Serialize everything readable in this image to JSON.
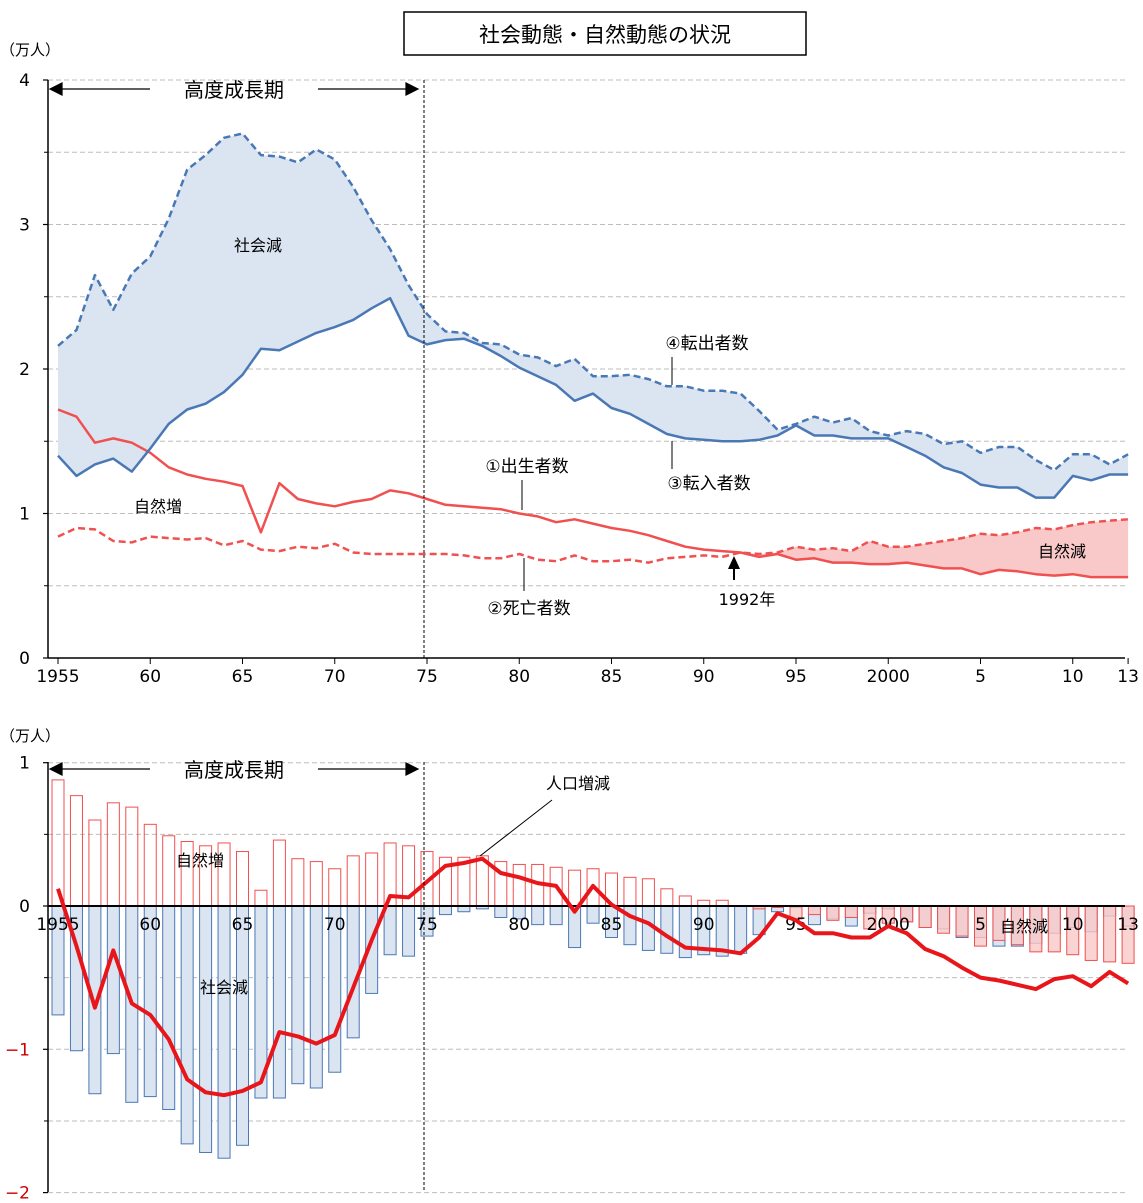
{
  "title": "社会動態・自然動態の状況",
  "unit_label": "（万人）",
  "colors": {
    "blue": "#4a78b5",
    "blue_fill": "#dbe5f2",
    "red": "#f05050",
    "red_fill": "#f9c8c8",
    "net_line": "#e8161a",
    "neg_tick": "#cc0000",
    "grid": "#bdbdbd"
  },
  "chart_data": [
    {
      "type": "line",
      "ylim": [
        0,
        4
      ],
      "yticks": [
        "0",
        "1",
        "2",
        "3",
        "4"
      ],
      "xticks": [
        {
          "year": 1955,
          "label": "1955"
        },
        {
          "year": 1960,
          "label": "60"
        },
        {
          "year": 1965,
          "label": "65"
        },
        {
          "year": 1970,
          "label": "70"
        },
        {
          "year": 1975,
          "label": "75"
        },
        {
          "year": 1980,
          "label": "80"
        },
        {
          "year": 1985,
          "label": "85"
        },
        {
          "year": 1990,
          "label": "90"
        },
        {
          "year": 1995,
          "label": "95"
        },
        {
          "year": 2000,
          "label": "2000"
        },
        {
          "year": 2005,
          "label": "5"
        },
        {
          "year": 2010,
          "label": "10"
        },
        {
          "year": 2013,
          "label": "13"
        }
      ],
      "x": [
        1955,
        1956,
        1957,
        1958,
        1959,
        1960,
        1961,
        1962,
        1963,
        1964,
        1965,
        1966,
        1967,
        1968,
        1969,
        1970,
        1971,
        1972,
        1973,
        1974,
        1975,
        1976,
        1977,
        1978,
        1979,
        1980,
        1981,
        1982,
        1983,
        1984,
        1985,
        1986,
        1987,
        1988,
        1989,
        1990,
        1991,
        1992,
        1993,
        1994,
        1995,
        1996,
        1997,
        1998,
        1999,
        2000,
        2001,
        2002,
        2003,
        2004,
        2005,
        2006,
        2007,
        2008,
        2009,
        2010,
        2011,
        2012,
        2013
      ],
      "series": [
        {
          "name": "①出生者数",
          "values": [
            1.72,
            1.67,
            1.49,
            1.52,
            1.49,
            1.42,
            1.32,
            1.27,
            1.24,
            1.22,
            1.19,
            0.87,
            1.21,
            1.1,
            1.07,
            1.05,
            1.08,
            1.1,
            1.16,
            1.14,
            1.1,
            1.06,
            1.05,
            1.04,
            1.03,
            1.0,
            0.98,
            0.94,
            0.96,
            0.93,
            0.9,
            0.88,
            0.85,
            0.81,
            0.77,
            0.75,
            0.74,
            0.73,
            0.7,
            0.72,
            0.68,
            0.69,
            0.66,
            0.66,
            0.65,
            0.65,
            0.66,
            0.64,
            0.62,
            0.62,
            0.58,
            0.61,
            0.6,
            0.58,
            0.57,
            0.58,
            0.56,
            0.56,
            0.56
          ]
        },
        {
          "name": "②死亡者数",
          "values": [
            0.84,
            0.9,
            0.89,
            0.81,
            0.8,
            0.84,
            0.83,
            0.82,
            0.83,
            0.78,
            0.81,
            0.75,
            0.74,
            0.77,
            0.76,
            0.79,
            0.73,
            0.72,
            0.72,
            0.72,
            0.72,
            0.72,
            0.71,
            0.69,
            0.69,
            0.72,
            0.68,
            0.67,
            0.71,
            0.67,
            0.67,
            0.68,
            0.66,
            0.69,
            0.7,
            0.71,
            0.7,
            0.73,
            0.72,
            0.73,
            0.77,
            0.75,
            0.76,
            0.74,
            0.81,
            0.77,
            0.77,
            0.79,
            0.81,
            0.83,
            0.86,
            0.85,
            0.87,
            0.9,
            0.89,
            0.92,
            0.94,
            0.95,
            0.96
          ]
        },
        {
          "name": "③転入者数",
          "values": [
            1.4,
            1.26,
            1.34,
            1.38,
            1.29,
            1.45,
            1.62,
            1.72,
            1.76,
            1.84,
            1.96,
            2.14,
            2.13,
            2.19,
            2.25,
            2.29,
            2.34,
            2.42,
            2.49,
            2.23,
            2.17,
            2.2,
            2.21,
            2.16,
            2.09,
            2.01,
            1.95,
            1.89,
            1.78,
            1.83,
            1.73,
            1.69,
            1.62,
            1.55,
            1.52,
            1.51,
            1.5,
            1.5,
            1.51,
            1.54,
            1.61,
            1.54,
            1.54,
            1.52,
            1.52,
            1.52,
            1.46,
            1.4,
            1.32,
            1.28,
            1.2,
            1.18,
            1.18,
            1.11,
            1.11,
            1.26,
            1.23,
            1.27,
            1.27
          ]
        },
        {
          "name": "④転出者数",
          "values": [
            2.16,
            2.27,
            2.65,
            2.41,
            2.66,
            2.78,
            3.04,
            3.38,
            3.48,
            3.6,
            3.63,
            3.48,
            3.47,
            3.43,
            3.52,
            3.45,
            3.26,
            3.03,
            2.83,
            2.58,
            2.38,
            2.26,
            2.25,
            2.18,
            2.17,
            2.1,
            2.08,
            2.02,
            2.07,
            1.95,
            1.95,
            1.96,
            1.93,
            1.88,
            1.88,
            1.85,
            1.85,
            1.83,
            1.71,
            1.58,
            1.62,
            1.67,
            1.63,
            1.66,
            1.57,
            1.54,
            1.57,
            1.55,
            1.48,
            1.5,
            1.42,
            1.46,
            1.46,
            1.37,
            1.3,
            1.41,
            1.41,
            1.34,
            1.41
          ]
        }
      ],
      "annotations": {
        "period": "高度成長期",
        "social_decrease": "社会減",
        "natural_increase": "自然増",
        "natural_decrease": "自然減",
        "crossover_year": 1992,
        "crossover_label": "1992年"
      }
    },
    {
      "type": "bar",
      "ylim": [
        -2,
        1
      ],
      "yticks": [
        "1",
        "0",
        "−1",
        "−2"
      ],
      "xticks": [
        {
          "year": 1955,
          "label": "1955"
        },
        {
          "year": 1960,
          "label": "60"
        },
        {
          "year": 1965,
          "label": "65"
        },
        {
          "year": 1970,
          "label": "70"
        },
        {
          "year": 1975,
          "label": "75"
        },
        {
          "year": 1980,
          "label": "80"
        },
        {
          "year": 1985,
          "label": "85"
        },
        {
          "year": 1990,
          "label": "90"
        },
        {
          "year": 1995,
          "label": "95"
        },
        {
          "year": 2000,
          "label": "2000"
        },
        {
          "year": 2005,
          "label": "5"
        },
        {
          "year": 2010,
          "label": "10"
        },
        {
          "year": 2013,
          "label": "13"
        }
      ],
      "x": [
        1955,
        1956,
        1957,
        1958,
        1959,
        1960,
        1961,
        1962,
        1963,
        1964,
        1965,
        1966,
        1967,
        1968,
        1969,
        1970,
        1971,
        1972,
        1973,
        1974,
        1975,
        1976,
        1977,
        1978,
        1979,
        1980,
        1981,
        1982,
        1983,
        1984,
        1985,
        1986,
        1987,
        1988,
        1989,
        1990,
        1991,
        1992,
        1993,
        1994,
        1995,
        1996,
        1997,
        1998,
        1999,
        2000,
        2001,
        2002,
        2003,
        2004,
        2005,
        2006,
        2007,
        2008,
        2009,
        2010,
        2011,
        2012,
        2013
      ],
      "series": [
        {
          "name": "自然増",
          "values": [
            0.88,
            0.77,
            0.6,
            0.72,
            0.69,
            0.57,
            0.49,
            0.45,
            0.42,
            0.44,
            0.38,
            0.11,
            0.46,
            0.33,
            0.31,
            0.26,
            0.35,
            0.37,
            0.44,
            0.42,
            0.38,
            0.34,
            0.34,
            0.35,
            0.31,
            0.29,
            0.29,
            0.27,
            0.25,
            0.26,
            0.23,
            0.2,
            0.19,
            0.12,
            0.07,
            0.04,
            0.04,
            0.0,
            -0.02,
            -0.01,
            -0.09,
            -0.06,
            -0.1,
            -0.08,
            -0.16,
            -0.12,
            -0.11,
            -0.15,
            -0.19,
            -0.21,
            -0.28,
            -0.24,
            -0.27,
            -0.32,
            -0.32,
            -0.34,
            -0.38,
            -0.39,
            -0.4
          ]
        },
        {
          "name": "社会減",
          "values": [
            -0.76,
            -1.01,
            -1.31,
            -1.03,
            -1.37,
            -1.33,
            -1.42,
            -1.66,
            -1.72,
            -1.76,
            -1.67,
            -1.34,
            -1.34,
            -1.24,
            -1.27,
            -1.16,
            -0.92,
            -0.61,
            -0.34,
            -0.35,
            -0.21,
            -0.06,
            -0.04,
            -0.02,
            -0.08,
            -0.09,
            -0.13,
            -0.13,
            -0.29,
            -0.12,
            -0.22,
            -0.27,
            -0.31,
            -0.33,
            -0.36,
            -0.34,
            -0.35,
            -0.33,
            -0.2,
            -0.04,
            -0.01,
            -0.13,
            -0.09,
            -0.14,
            -0.05,
            -0.02,
            -0.11,
            -0.15,
            -0.16,
            -0.22,
            -0.22,
            -0.28,
            -0.28,
            -0.26,
            -0.19,
            -0.15,
            -0.18,
            -0.07,
            -0.14
          ]
        },
        {
          "name": "人口増減",
          "values": [
            0.12,
            -0.28,
            -0.71,
            -0.31,
            -0.68,
            -0.76,
            -0.93,
            -1.21,
            -1.3,
            -1.32,
            -1.29,
            -1.23,
            -0.88,
            -0.91,
            -0.96,
            -0.9,
            -0.57,
            -0.24,
            0.07,
            0.06,
            0.17,
            0.28,
            0.3,
            0.33,
            0.23,
            0.2,
            0.16,
            0.14,
            -0.04,
            0.14,
            0.01,
            -0.07,
            -0.12,
            -0.21,
            -0.29,
            -0.3,
            -0.31,
            -0.33,
            -0.22,
            -0.05,
            -0.1,
            -0.19,
            -0.19,
            -0.22,
            -0.22,
            -0.14,
            -0.19,
            -0.3,
            -0.35,
            -0.43,
            -0.5,
            -0.52,
            -0.55,
            -0.58,
            -0.51,
            -0.49,
            -0.56,
            -0.46,
            -0.54
          ]
        }
      ],
      "annotations": {
        "period": "高度成長期",
        "social_decrease": "社会減",
        "natural_increase": "自然増",
        "natural_decrease": "自然減",
        "net_label": "人口増減"
      }
    }
  ]
}
